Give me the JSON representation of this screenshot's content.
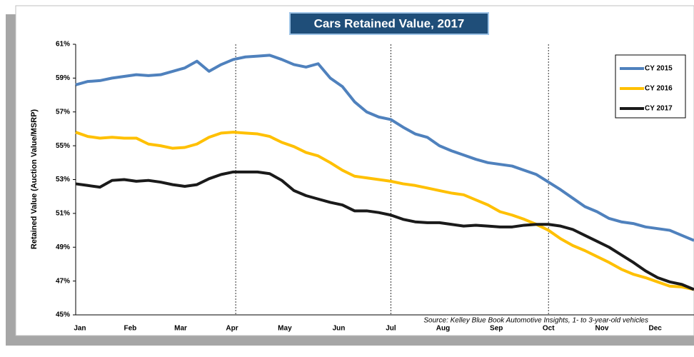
{
  "chart_data": {
    "type": "line",
    "title": "Cars Retained Value, 2017",
    "y_label": "Retained Value (Auction Value/MSRP)",
    "source": "Source: Kelley Blue Book Automotive Insights, 1- to 3-year-old vehicles",
    "x": [
      1,
      2,
      3,
      4,
      5,
      6,
      7,
      8,
      9,
      10,
      11,
      12,
      13,
      14,
      15,
      16,
      17,
      18,
      19,
      20,
      21,
      22,
      23,
      24,
      25,
      26,
      27,
      28,
      29,
      30,
      31,
      32,
      33,
      34,
      35,
      36,
      37,
      38,
      39,
      40,
      41,
      42,
      43,
      44,
      45,
      46,
      47,
      48,
      49,
      50,
      51,
      52
    ],
    "xlim": [
      1,
      52
    ],
    "xticks": [
      {
        "value": 1.35,
        "label": "Jan"
      },
      {
        "value": 5.5,
        "label": "Feb"
      },
      {
        "value": 9.66,
        "label": "Mar"
      },
      {
        "value": 13.9,
        "label": "Apr"
      },
      {
        "value": 18.25,
        "label": "May"
      },
      {
        "value": 22.7,
        "label": "Jun"
      },
      {
        "value": 27,
        "label": "Jul"
      },
      {
        "value": 31.3,
        "label": "Aug"
      },
      {
        "value": 35.7,
        "label": "Sep"
      },
      {
        "value": 40,
        "label": "Oct"
      },
      {
        "value": 44.4,
        "label": "Nov"
      },
      {
        "value": 48.8,
        "label": "Dec"
      }
    ],
    "quarter_lines": [
      14.2,
      27,
      40
    ],
    "ylim": [
      45,
      61
    ],
    "yticks": [
      {
        "value": 45,
        "label": "45%"
      },
      {
        "value": 47,
        "label": "47%"
      },
      {
        "value": 49,
        "label": "49%"
      },
      {
        "value": 51,
        "label": "51%"
      },
      {
        "value": 53,
        "label": "53%"
      },
      {
        "value": 55,
        "label": "55%"
      },
      {
        "value": 57,
        "label": "57%"
      },
      {
        "value": 59,
        "label": "59%"
      },
      {
        "value": 61,
        "label": "61%"
      }
    ],
    "legend": "top-right",
    "series": [
      {
        "name": "CY 2015",
        "color": "#4f81bd",
        "values": [
          58.6,
          58.8,
          58.85,
          59.0,
          59.1,
          59.2,
          59.15,
          59.2,
          59.4,
          59.6,
          60.0,
          59.4,
          59.8,
          60.1,
          60.25,
          60.3,
          60.35,
          60.1,
          59.8,
          59.65,
          59.85,
          59.0,
          58.5,
          57.6,
          57.0,
          56.7,
          56.55,
          56.1,
          55.7,
          55.5,
          55.0,
          54.7,
          54.45,
          54.2,
          54.0,
          53.9,
          53.8,
          53.55,
          53.3,
          52.85,
          52.4,
          51.9,
          51.4,
          51.1,
          50.7,
          50.5,
          50.4,
          50.2,
          50.1,
          50.0,
          49.7,
          49.4
        ]
      },
      {
        "name": "CY 2016",
        "color": "#ffc000",
        "values": [
          55.8,
          55.55,
          55.45,
          55.5,
          55.45,
          55.45,
          55.1,
          55.0,
          54.85,
          54.9,
          55.1,
          55.5,
          55.75,
          55.8,
          55.75,
          55.7,
          55.55,
          55.2,
          54.95,
          54.6,
          54.4,
          54.0,
          53.55,
          53.2,
          53.1,
          53.0,
          52.9,
          52.75,
          52.65,
          52.5,
          52.35,
          52.2,
          52.1,
          51.8,
          51.5,
          51.1,
          50.9,
          50.65,
          50.35,
          50.0,
          49.5,
          49.1,
          48.8,
          48.45,
          48.1,
          47.7,
          47.4,
          47.2,
          46.95,
          46.7,
          46.65,
          46.5
        ]
      },
      {
        "name": "CY 2017",
        "color": "#1a1a1a",
        "values": [
          52.75,
          52.65,
          52.55,
          52.95,
          53.0,
          52.9,
          52.95,
          52.85,
          52.7,
          52.6,
          52.7,
          53.05,
          53.3,
          53.45,
          53.45,
          53.45,
          53.35,
          52.95,
          52.35,
          52.05,
          51.85,
          51.65,
          51.5,
          51.15,
          51.15,
          51.05,
          50.9,
          50.65,
          50.5,
          50.45,
          50.45,
          50.35,
          50.25,
          50.3,
          50.25,
          50.2,
          50.2,
          50.3,
          50.35,
          50.35,
          50.25,
          50.05,
          49.7,
          49.35,
          49.0,
          48.55,
          48.1,
          47.6,
          47.2,
          46.95,
          46.8,
          46.5
        ]
      }
    ]
  }
}
